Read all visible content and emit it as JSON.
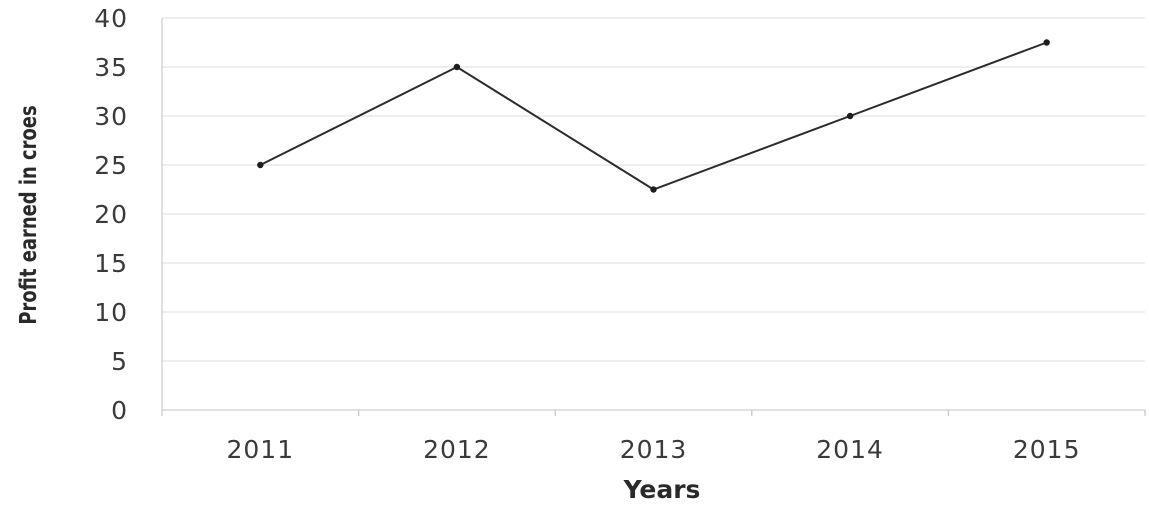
{
  "chart_data": {
    "type": "line",
    "categories": [
      "2011",
      "2012",
      "2013",
      "2014",
      "2015"
    ],
    "series": [
      {
        "values": [
          25,
          35,
          22.5,
          30,
          37.5
        ]
      }
    ],
    "xlabel": "Years",
    "ylabel": "Profit earned in croes",
    "ylim": [
      0,
      40
    ],
    "yticks": [
      "0",
      "5",
      "10",
      "15",
      "20",
      "25",
      "30",
      "35",
      "40"
    ],
    "grid": true,
    "line_color": "#2b2b2b"
  }
}
